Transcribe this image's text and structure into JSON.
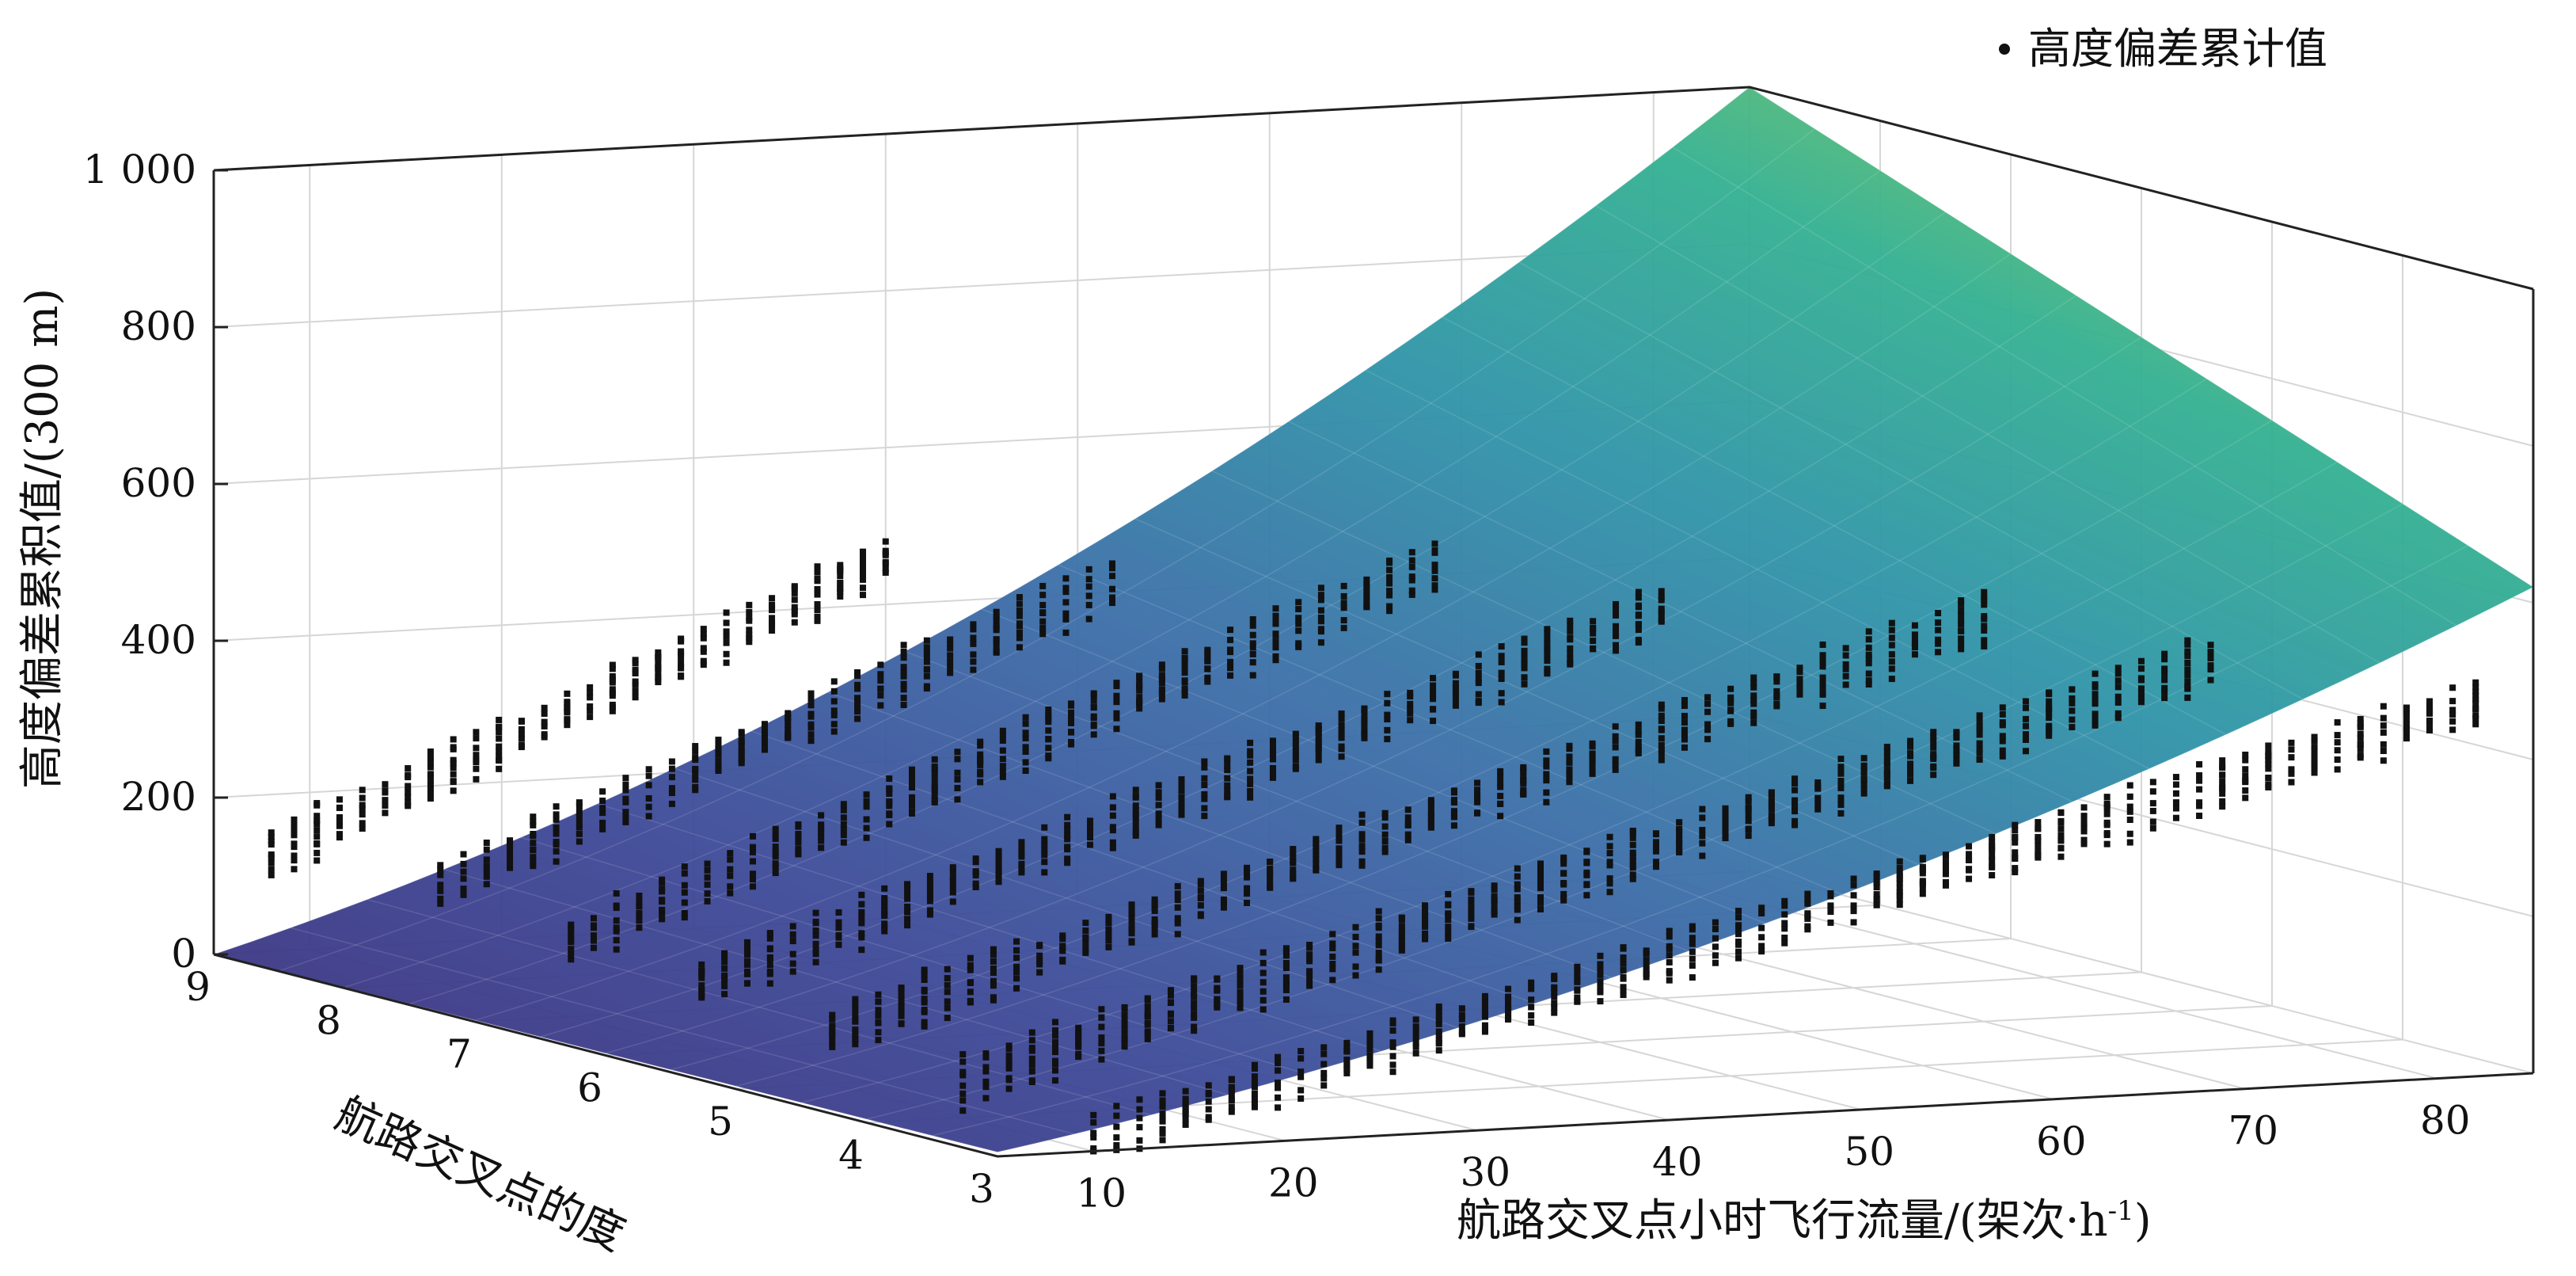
{
  "chart_data": {
    "type": "scatter",
    "subtype": "3d-surface-with-scatter",
    "legend": {
      "entries": [
        "高度偏差累计值"
      ],
      "position": "top-right"
    },
    "x_axis": {
      "label": "航路交叉点小时飞行流量/(架次·h",
      "label_suffix": "-1",
      "label_close": ")",
      "ticks": [
        "10",
        "20",
        "30",
        "40",
        "50",
        "60",
        "70",
        "80"
      ],
      "range": [
        5,
        85
      ]
    },
    "y_axis": {
      "label": "航路交叉点的度",
      "ticks": [
        "9",
        "8",
        "7",
        "6",
        "5",
        "4",
        "3"
      ],
      "range": [
        3,
        9
      ]
    },
    "z_axis": {
      "label": "高度偏差累积值/(300 m)",
      "ticks": [
        "0",
        "200",
        "400",
        "600",
        "800",
        "1 000"
      ],
      "range": [
        0,
        1000
      ]
    },
    "grid": true,
    "colormap": [
      "#3b2c7a",
      "#3d4a98",
      "#3b6fa8",
      "#2f93a8",
      "#33b091",
      "#6ec266",
      "#b8d645"
    ],
    "marker_color": "#111111",
    "surface": {
      "description_values": [
        {
          "x": 5,
          "y": 9,
          "z": 0
        },
        {
          "x": 5,
          "y": 3,
          "z": 10
        },
        {
          "x": 85,
          "y": 9,
          "z": 1000
        },
        {
          "x": 85,
          "y": 3,
          "z": 620
        }
      ]
    },
    "series": [
      {
        "name": "高度偏差累计值",
        "columns": [
          {
            "y": 9,
            "x_start": 8,
            "x_end": 40,
            "z_start": 130,
            "z_end": 460
          },
          {
            "y": 8,
            "x_start": 10,
            "x_end": 45,
            "z_start": 130,
            "z_end": 470
          },
          {
            "y": 7,
            "x_start": 10,
            "x_end": 55,
            "z_start": 100,
            "z_end": 520
          },
          {
            "y": 6,
            "x_start": 10,
            "x_end": 60,
            "z_start": 90,
            "z_end": 500
          },
          {
            "y": 5,
            "x_start": 10,
            "x_end": 70,
            "z_start": 70,
            "z_end": 520
          },
          {
            "y": 4,
            "x_start": 10,
            "x_end": 75,
            "z_start": 50,
            "z_end": 500
          },
          {
            "y": 3,
            "x_start": 10,
            "x_end": 82,
            "z_start": 20,
            "z_end": 480
          }
        ]
      }
    ]
  }
}
